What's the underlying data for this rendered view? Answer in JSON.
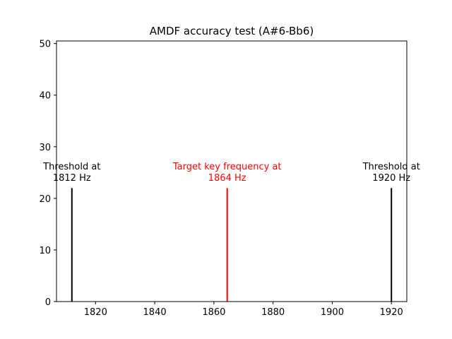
{
  "chart_data": {
    "type": "bar",
    "title": "AMDF accuracy test (A#6-Bb6)",
    "xlabel": "",
    "ylabel": "",
    "xlim": [
      1806.8,
      1925.2
    ],
    "ylim": [
      0,
      50.5
    ],
    "xticks": [
      1820,
      1840,
      1860,
      1880,
      1900,
      1920
    ],
    "yticks": [
      0,
      10,
      20,
      30,
      40,
      50
    ],
    "grid": false,
    "lines": [
      {
        "x": 1812,
        "height": 22,
        "color": "#000000",
        "label_lines": [
          "Threshold at",
          "1812 Hz"
        ]
      },
      {
        "x": 1864.5,
        "height": 22,
        "color": "#ff0000",
        "label_lines": [
          "Target key frequency at",
          "1864 Hz"
        ]
      },
      {
        "x": 1920,
        "height": 22,
        "color": "#000000",
        "label_lines": [
          "Threshold at",
          "1920 Hz"
        ]
      }
    ]
  }
}
